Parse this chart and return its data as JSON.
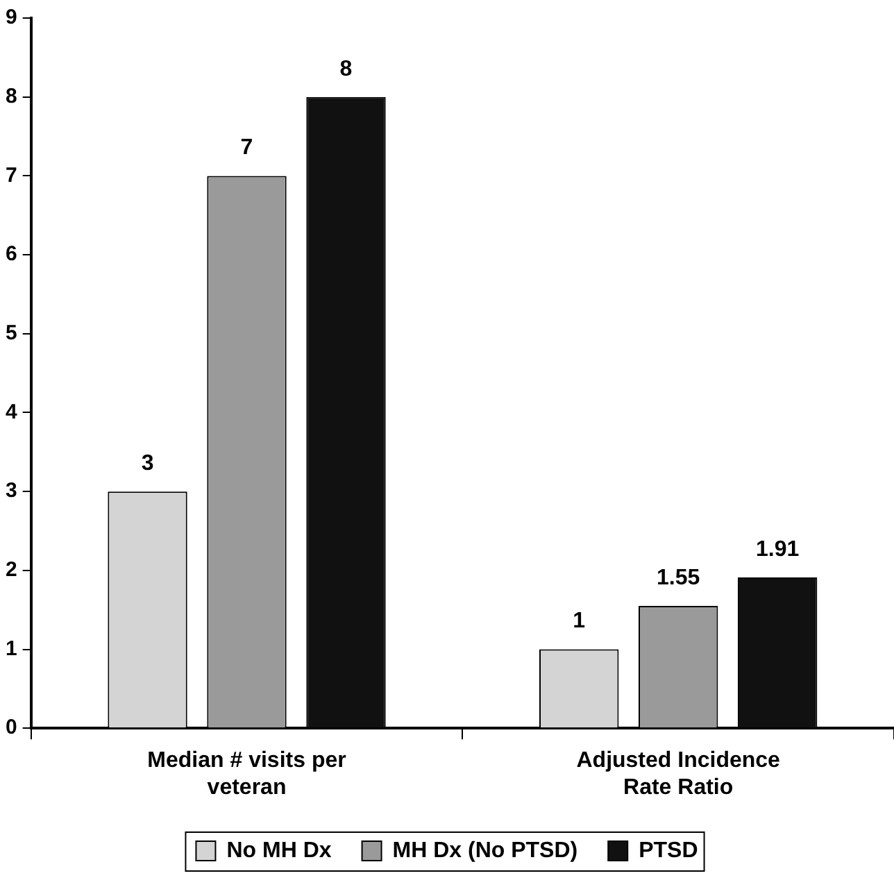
{
  "chart_data": {
    "type": "bar",
    "categories": [
      "Median # visits per veteran",
      "Adjusted Incidence Rate Ratio"
    ],
    "series": [
      {
        "name": "No MH Dx",
        "color": "#d4d4d4",
        "values": [
          3,
          1
        ]
      },
      {
        "name": "MH Dx (No PTSD)",
        "color": "#9a9a9a",
        "values": [
          7,
          1.55
        ]
      },
      {
        "name": "PTSD",
        "color": "#111111",
        "values": [
          8,
          1.91
        ]
      }
    ],
    "ylim": [
      0,
      9
    ],
    "yticks": [
      0,
      1,
      2,
      3,
      4,
      5,
      6,
      7,
      8,
      9
    ],
    "grid": false,
    "legend": "bottom",
    "data_labels": true
  }
}
